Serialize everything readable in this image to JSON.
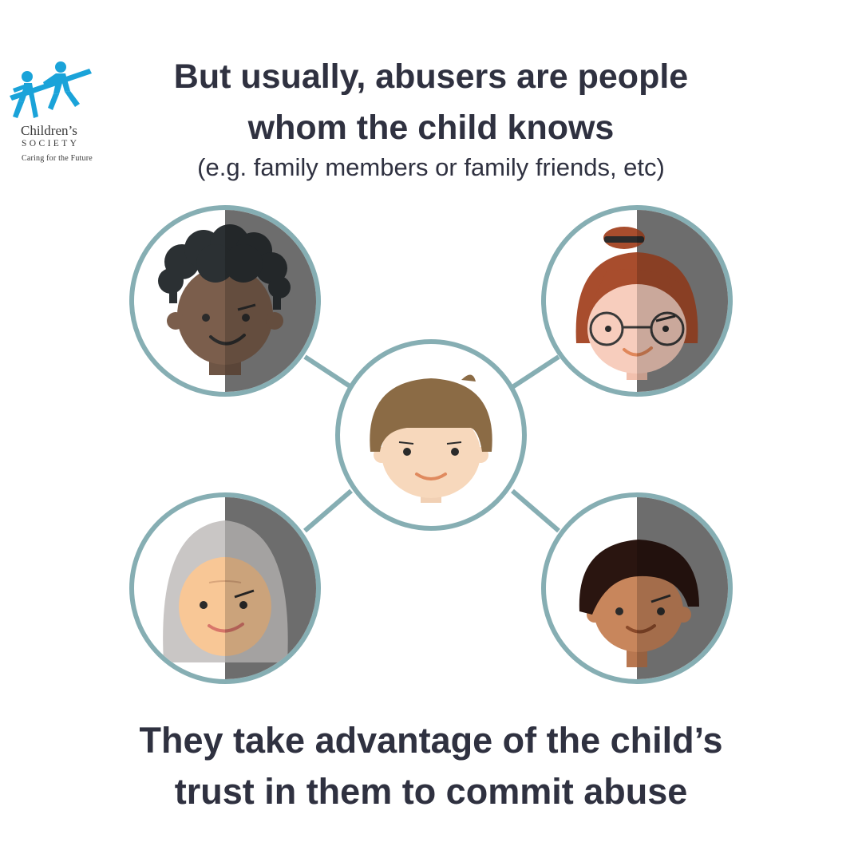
{
  "logo": {
    "name_line1": "Children’s",
    "name_line2": "SOCIETY",
    "tagline": "Caring for the Future",
    "brand_color": "#1aa3d9"
  },
  "headline": {
    "line1": "But usually, abusers are people",
    "line2": "whom the child knows",
    "subline": "(e.g. family members or family friends, etc)"
  },
  "footer": {
    "line1": "They take advantage of the child’s",
    "line2": "trust in them to commit abuse"
  },
  "colors": {
    "text": "#2f3140",
    "ring": "#86aeb3",
    "shadow": "#858585"
  }
}
